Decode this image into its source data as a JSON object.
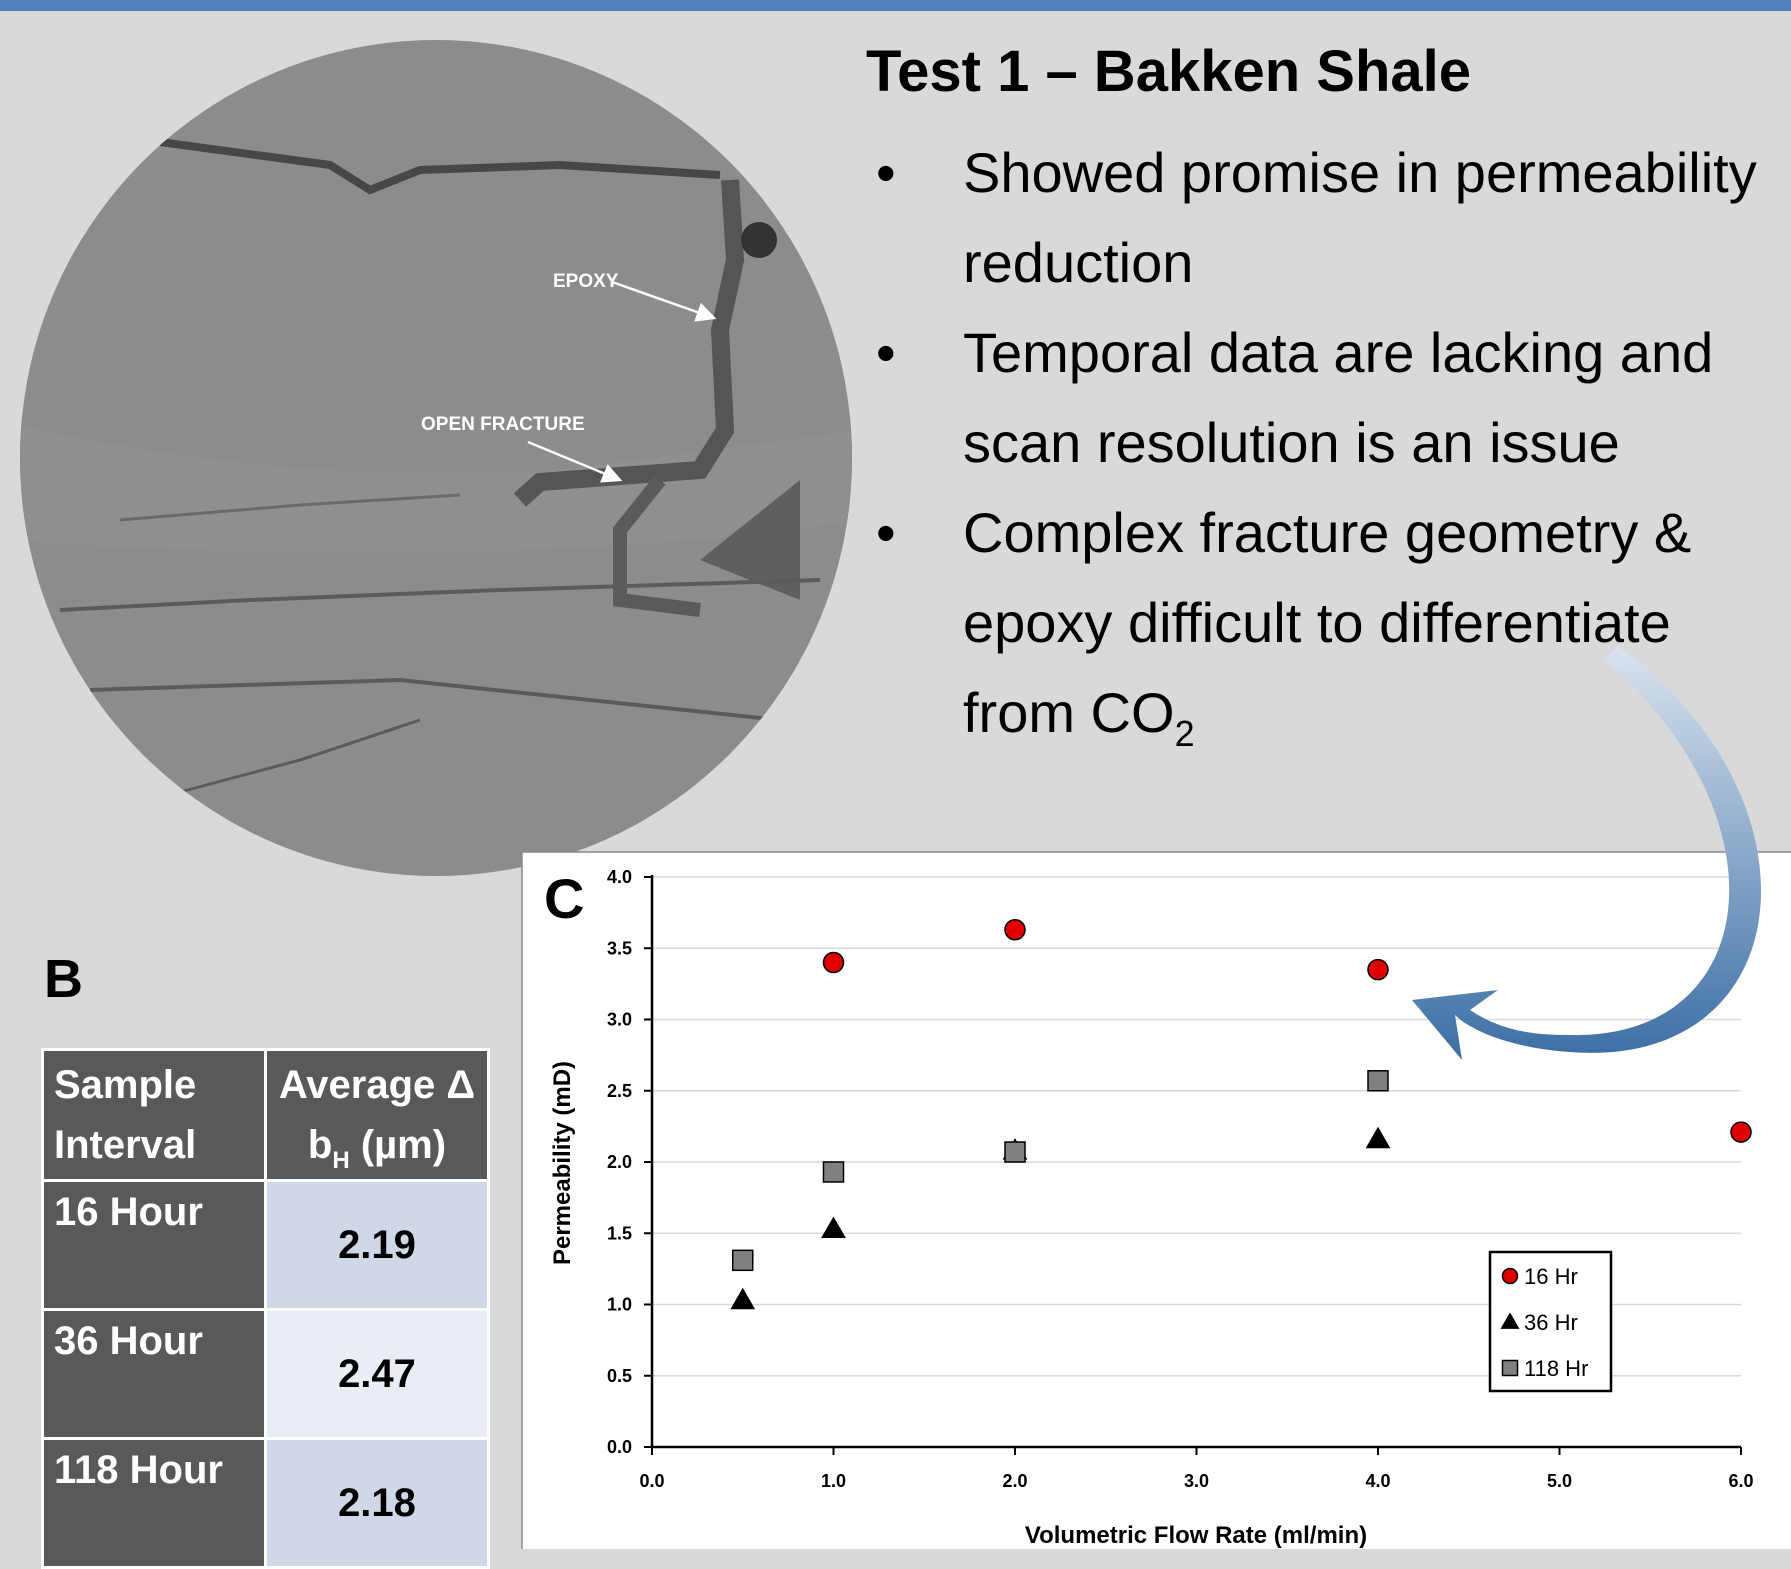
{
  "slide": {
    "title": "Test 1 – Bakken Shale",
    "bullets": [
      {
        "text": "Showed promise in permeability reduction"
      },
      {
        "text": "Temporal data are lacking and scan resolution is an issue"
      },
      {
        "text": "Complex fracture geometry & epoxy difficult to differentiate from CO",
        "sub": "2"
      }
    ],
    "image_labels": [
      "EPOXY",
      "OPEN FRACTURE"
    ]
  },
  "table": {
    "label": "B",
    "columns": [
      {
        "text": "Sample Interval"
      },
      {
        "text": "Average Δ b",
        "sub": "H",
        "after": " (µm)"
      }
    ],
    "rows": [
      [
        "16 Hour",
        "2.19"
      ],
      [
        "36 Hour",
        "2.47"
      ],
      [
        "118 Hour",
        "2.18"
      ]
    ]
  },
  "chart_data": {
    "type": "scatter",
    "panel_label": "C",
    "x_label": "Volumetric Flow Rate (ml/min)",
    "y_label": "Permeability (mD)",
    "xlim": [
      0,
      6
    ],
    "ylim": [
      0,
      4
    ],
    "xticks": [
      {
        "value": 0,
        "label": "0.0"
      },
      {
        "value": 1,
        "label": "1.0"
      },
      {
        "value": 2,
        "label": "2.0"
      },
      {
        "value": 3,
        "label": "3.0"
      },
      {
        "value": 4,
        "label": "4.0"
      },
      {
        "value": 5,
        "label": "5.0"
      },
      {
        "value": 6,
        "label": "6.0"
      }
    ],
    "yticks": [
      {
        "value": 0,
        "label": "0.0"
      },
      0.5,
      {
        "value": 1,
        "label": "1.0"
      },
      1.5,
      {
        "value": 2,
        "label": "2.0"
      },
      2.5,
      {
        "value": 3,
        "label": "3.0"
      },
      3.5,
      {
        "value": 4,
        "label": "4.0"
      }
    ],
    "grid": true,
    "legend": "lower right",
    "series": [
      {
        "name": "16 Hr",
        "color": "#e00000",
        "marker": "circle",
        "x": [
          1,
          2,
          4,
          6
        ],
        "values": [
          3.4,
          3.63,
          3.35,
          2.21
        ]
      },
      {
        "name": "36 Hr",
        "color": "#000000",
        "marker": "triangle",
        "x": [
          0.5,
          1,
          2,
          4
        ],
        "values": [
          1.03,
          1.53,
          2.08,
          2.16
        ]
      },
      {
        "name": "118 Hr",
        "color": "#808080",
        "marker": "square",
        "x": [
          0.5,
          1,
          2,
          4
        ],
        "values": [
          1.31,
          1.93,
          2.07,
          2.57
        ]
      }
    ]
  }
}
